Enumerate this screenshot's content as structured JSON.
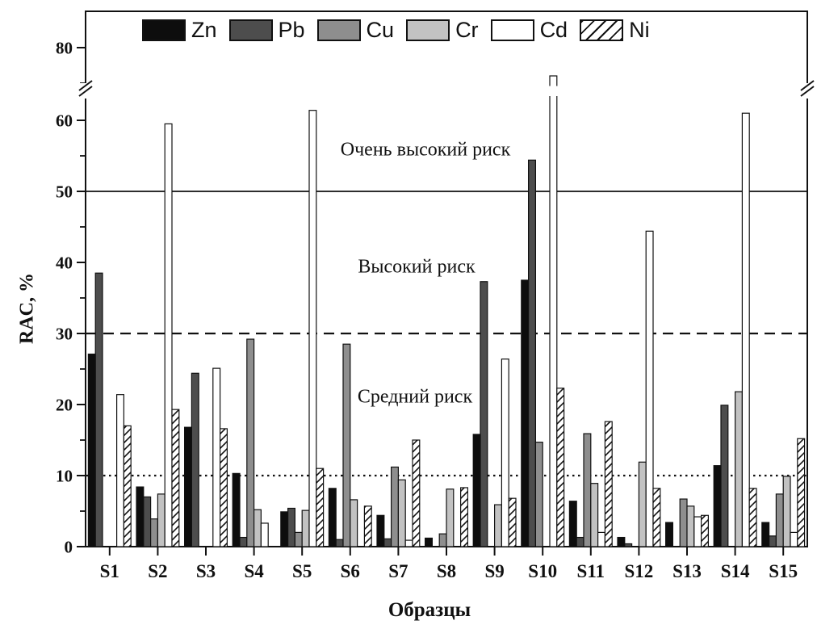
{
  "labels": {
    "ylabel": "RAC, %",
    "xlabel": "Образцы",
    "risk_very_high": "Очень высокий риск",
    "risk_high": "Высокий риск",
    "risk_medium": "Средний риск"
  },
  "colors": {
    "frame": "#111111",
    "background": "#ffffff",
    "zn": "#0d0d0d",
    "pb": "#4d4d4d",
    "cu": "#8e8e8e",
    "cr": "#c2c2c2",
    "cd": "#ffffff"
  },
  "chart_data": {
    "type": "bar",
    "title": "",
    "xlabel": "Образцы",
    "ylabel": "RAC, %",
    "categories": [
      "S1",
      "S2",
      "S3",
      "S4",
      "S5",
      "S6",
      "S7",
      "S8",
      "S9",
      "S10",
      "S11",
      "S12",
      "S13",
      "S14",
      "S15"
    ],
    "series": [
      {
        "name": "Zn",
        "color": "#0d0d0d",
        "hatch": false,
        "values": [
          27.1,
          8.4,
          16.8,
          10.3,
          4.9,
          8.2,
          4.4,
          1.2,
          15.8,
          37.5,
          6.4,
          1.3,
          3.4,
          11.4,
          3.4
        ]
      },
      {
        "name": "Pb",
        "color": "#4d4d4d",
        "hatch": false,
        "values": [
          38.5,
          7.0,
          24.4,
          1.3,
          5.4,
          1.0,
          1.1,
          0,
          37.3,
          54.4,
          1.3,
          0.4,
          0,
          19.9,
          1.5
        ]
      },
      {
        "name": "Cu",
        "color": "#8e8e8e",
        "hatch": false,
        "values": [
          0,
          3.9,
          0,
          29.2,
          2.0,
          28.5,
          11.2,
          1.8,
          0,
          14.7,
          15.9,
          0,
          6.7,
          0,
          7.4
        ]
      },
      {
        "name": "Cr",
        "color": "#c2c2c2",
        "hatch": false,
        "values": [
          0,
          7.4,
          0,
          5.2,
          5.1,
          6.6,
          9.4,
          8.1,
          5.9,
          0,
          8.9,
          11.9,
          5.7,
          21.8,
          9.9
        ]
      },
      {
        "name": "Cd",
        "color": "#ffffff",
        "hatch": false,
        "values": [
          21.4,
          59.5,
          25.1,
          3.3,
          61.4,
          0,
          0.9,
          0,
          26.4,
          76.0,
          2.0,
          44.4,
          4.2,
          61.0,
          2.0
        ]
      },
      {
        "name": "Ni",
        "color": "#ffffff",
        "hatch": true,
        "values": [
          17.0,
          19.3,
          16.6,
          0,
          11.0,
          5.7,
          15.0,
          8.3,
          6.8,
          22.3,
          17.6,
          8.2,
          4.4,
          8.2,
          15.2
        ]
      }
    ],
    "ylim": [
      0,
      85
    ],
    "y_major_ticks": [
      0,
      10,
      20,
      30,
      40,
      50,
      60,
      80
    ],
    "y_minor_ticks": [
      5,
      15,
      25,
      35,
      45,
      55,
      75,
      85
    ],
    "axis_break": {
      "between": [
        60,
        80
      ],
      "hidden_range_pct": [
        63,
        75
      ]
    },
    "reference_lines": [
      {
        "value": 50,
        "style": "solid",
        "label": "Очень высокий риск"
      },
      {
        "value": 30,
        "style": "dashed",
        "label": "Высокий риск"
      },
      {
        "value": 10,
        "style": "dotted",
        "label": "Средний риск"
      }
    ],
    "legend_position": "top-inside",
    "grid": false,
    "clipped_bars": [
      {
        "category": "S10",
        "series": "Cd",
        "drawn_with_break": true
      }
    ]
  }
}
